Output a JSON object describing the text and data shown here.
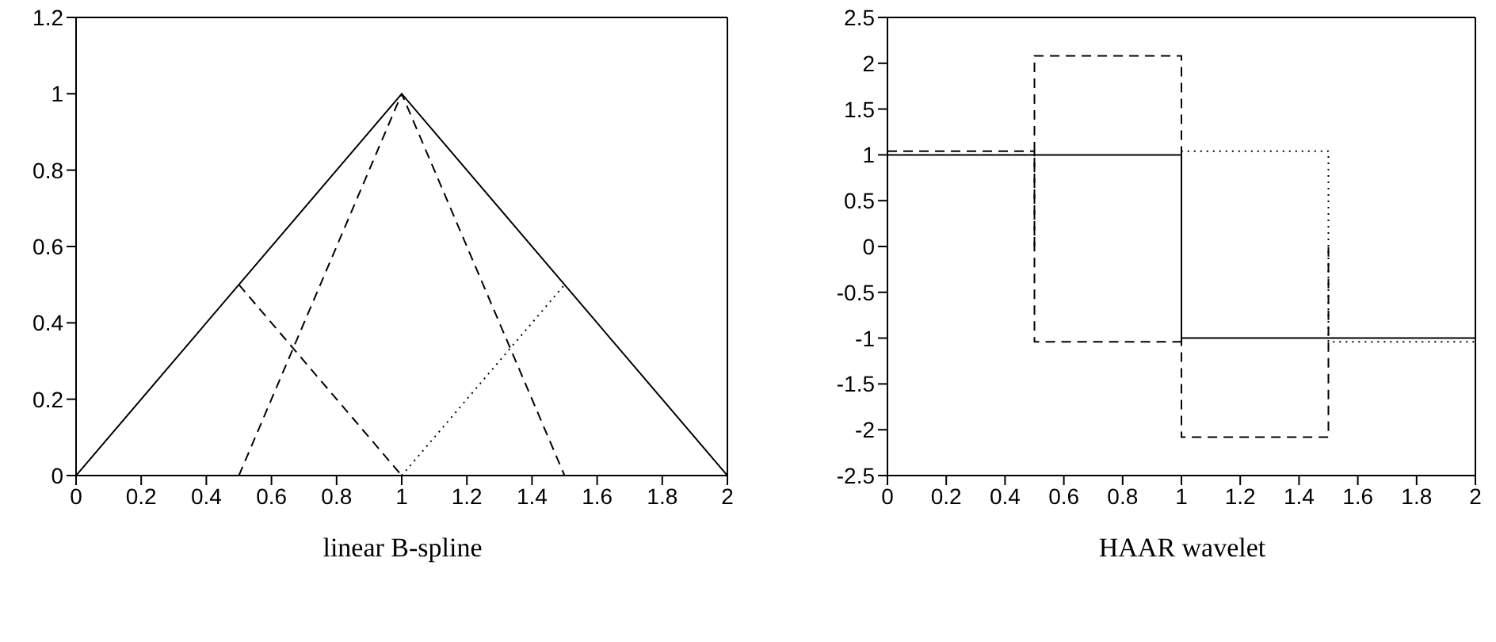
{
  "chart_data": [
    {
      "type": "line",
      "xlabel": "linear B-spline",
      "xlim": [
        0,
        2
      ],
      "xticks": [
        0,
        0.2,
        0.4,
        0.6,
        0.8,
        1,
        1.2,
        1.4,
        1.6,
        1.8,
        2
      ],
      "ylim": [
        0,
        1.2
      ],
      "yticks": [
        0,
        0.2,
        0.4,
        0.6,
        0.8,
        1,
        1.2
      ],
      "marker": "none",
      "series": [
        {
          "color": "#000000",
          "line_style": "solid",
          "x": [
            0,
            1,
            2
          ],
          "values": [
            0,
            1,
            0
          ]
        },
        {
          "color": "#000000",
          "line_style": "dashed",
          "x": [
            0.5,
            1
          ],
          "values": [
            0.5,
            0
          ]
        },
        {
          "color": "#000000",
          "line_style": "dashed",
          "x": [
            0.5,
            1,
            1.5
          ],
          "values": [
            0,
            1,
            0
          ]
        },
        {
          "color": "#000000",
          "line_style": "dotted",
          "x": [
            1,
            1.5
          ],
          "values": [
            0,
            0.5
          ]
        }
      ]
    },
    {
      "type": "line",
      "xlabel": "HAAR wavelet",
      "xlim": [
        0,
        2
      ],
      "xticks": [
        0,
        0.2,
        0.4,
        0.6,
        0.8,
        1,
        1.2,
        1.4,
        1.6,
        1.8,
        2
      ],
      "ylim": [
        -2.5,
        2.5
      ],
      "yticks": [
        -2.5,
        -2,
        -1.5,
        -1,
        -0.5,
        0,
        0.5,
        1,
        1.5,
        2,
        2.5
      ],
      "marker": "none",
      "series": [
        {
          "color": "#000000",
          "line_style": "solid",
          "x": [
            0,
            1,
            1,
            2
          ],
          "values": [
            1,
            1,
            -1,
            -1
          ]
        },
        {
          "color": "#000000",
          "line_style": "dashed",
          "x": [
            0,
            0.5,
            0.5,
            1
          ],
          "values": [
            1.04,
            1.04,
            -1.04,
            -1.04
          ]
        },
        {
          "color": "#000000",
          "line_style": "dashed",
          "x": [
            0.5,
            0.5,
            1,
            1,
            1.5,
            1.5
          ],
          "values": [
            0,
            2.08,
            2.08,
            -2.08,
            -2.08,
            0
          ]
        },
        {
          "color": "#000000",
          "line_style": "dotted",
          "x": [
            1,
            1,
            1.5,
            1.5,
            2,
            2
          ],
          "values": [
            0,
            1.04,
            1.04,
            -1.04,
            -1.04,
            0
          ]
        }
      ]
    }
  ]
}
